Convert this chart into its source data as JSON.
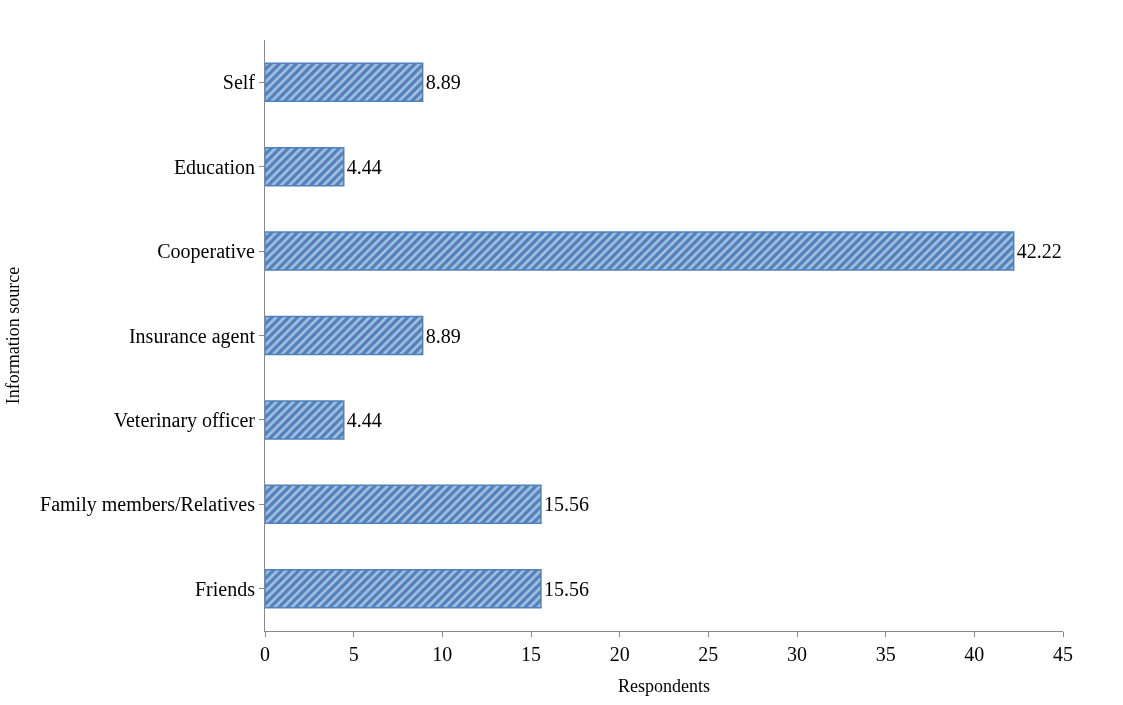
{
  "chart_data": {
    "type": "bar",
    "orientation": "horizontal",
    "xlabel": "Respondents",
    "ylabel": "Information source",
    "categories": [
      "Self",
      "Education",
      "Cooperative",
      "Insurance agent",
      "Veterinary officer",
      "Family members/Relatives",
      "Friends"
    ],
    "values": [
      8.89,
      4.44,
      42.22,
      8.89,
      4.44,
      15.56,
      15.56
    ],
    "color": "#4f81bd",
    "data_labels": true,
    "xlim": [
      0,
      45
    ],
    "xticks": [
      0,
      5,
      10,
      15,
      20,
      25,
      30,
      35,
      40,
      45
    ]
  }
}
